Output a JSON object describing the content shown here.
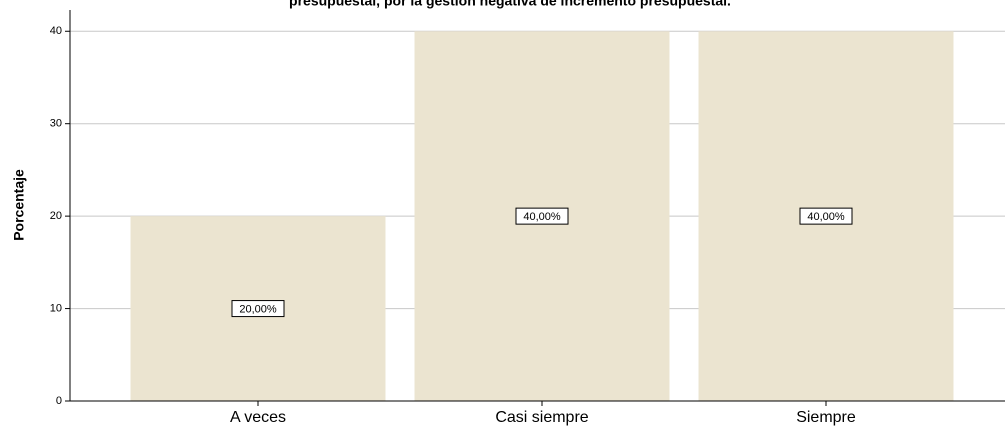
{
  "chart_data": {
    "type": "bar",
    "title": "presupuestal, por la gestión negativa de incremento presupuestal.",
    "y_label": "Porcentaje",
    "categories": [
      "A veces",
      "Casi siempre",
      "Siempre"
    ],
    "values": [
      20,
      40,
      40
    ],
    "value_labels": [
      "20,00%",
      "40,00%",
      "40,00%"
    ],
    "color": "#ebe4d0",
    "ylim": [
      0,
      42.3
    ],
    "yticks": [
      0,
      10,
      20,
      30,
      40
    ],
    "grid": true
  }
}
